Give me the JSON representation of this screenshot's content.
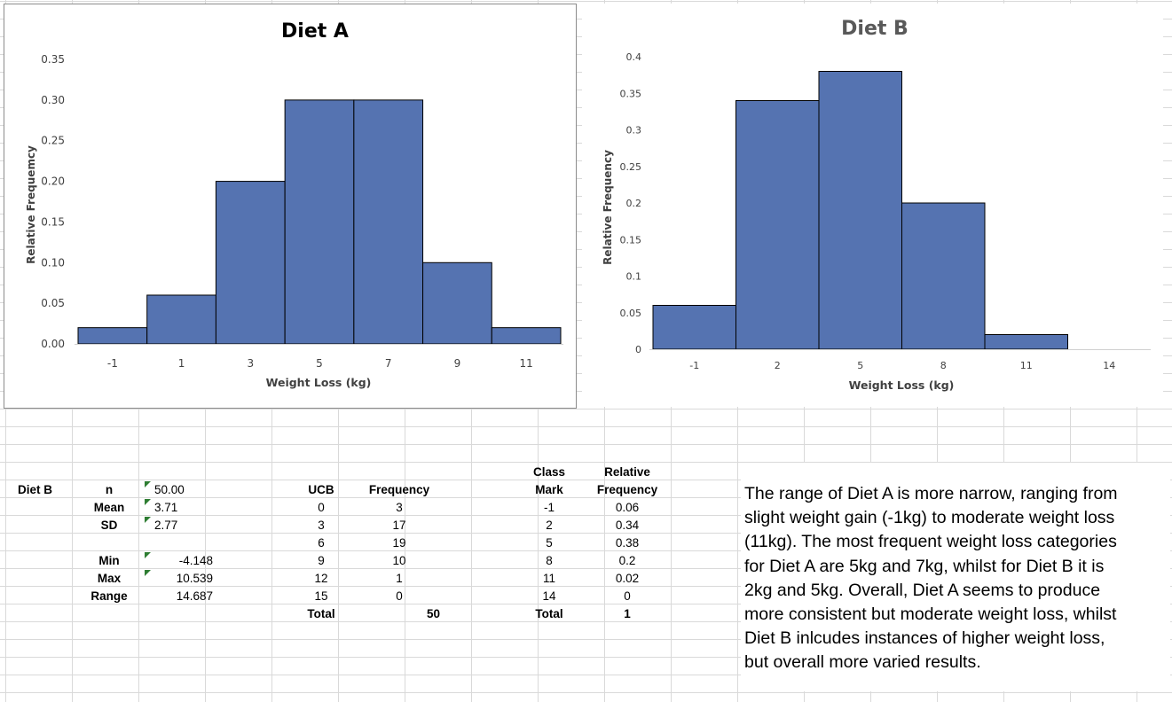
{
  "charts": [
    {
      "title": "Diet A",
      "xlabel": "Weight Loss (kg)",
      "ylabel": "Relative Frequemcy",
      "yticks": [
        "0.00",
        "0.05",
        "0.10",
        "0.15",
        "0.20",
        "0.25",
        "0.30",
        "0.35"
      ],
      "ylim": [
        0,
        0.35
      ],
      "bar_color": "#5573b1",
      "title_color": "#000000"
    },
    {
      "title": "Diet B",
      "xlabel": "Weight Loss (kg)",
      "ylabel": "Relative Frequency",
      "yticks": [
        "0",
        "0.05",
        "0.1",
        "0.15",
        "0.2",
        "0.25",
        "0.3",
        "0.35",
        "0.4"
      ],
      "ylim": [
        0,
        0.4
      ],
      "bar_color": "#5573b1",
      "title_color": "#595959"
    }
  ],
  "chart_data": [
    {
      "type": "bar",
      "title": "Diet A",
      "categories": [
        "-1",
        "1",
        "3",
        "5",
        "7",
        "9",
        "11"
      ],
      "values": [
        0.02,
        0.06,
        0.2,
        0.3,
        0.3,
        0.1,
        0.02
      ],
      "xlabel": "Weight Loss (kg)",
      "ylabel": "Relative Frequemcy",
      "ylim": [
        0,
        0.35
      ],
      "grid": false
    },
    {
      "type": "bar",
      "title": "Diet B",
      "categories": [
        "-1",
        "2",
        "5",
        "8",
        "11",
        "14"
      ],
      "values": [
        0.06,
        0.34,
        0.38,
        0.2,
        0.02,
        0
      ],
      "xlabel": "Weight Loss (kg)",
      "ylabel": "Relative Frequency",
      "ylim": [
        0,
        0.4
      ],
      "grid": false
    }
  ],
  "stats": {
    "label": "Diet B",
    "n_label": "n",
    "n": "50.00",
    "mean_label": "Mean",
    "mean": "3.71",
    "sd_label": "SD",
    "sd": "2.77",
    "min_label": "Min",
    "min": "-4.148",
    "max_label": "Max",
    "max": "10.539",
    "range_label": "Range",
    "range": "14.687"
  },
  "freq_table": {
    "ucb_header": "UCB",
    "freq_header": "Frequency",
    "rows": [
      {
        "ucb": "0",
        "freq": "3"
      },
      {
        "ucb": "3",
        "freq": "17"
      },
      {
        "ucb": "6",
        "freq": "19"
      },
      {
        "ucb": "9",
        "freq": "10"
      },
      {
        "ucb": "12",
        "freq": "1"
      },
      {
        "ucb": "15",
        "freq": "0"
      }
    ],
    "total_label": "Total",
    "total": "50"
  },
  "rel_table": {
    "mark_header_1": "Class",
    "mark_header_2": "Mark",
    "rel_header_1": "Relative",
    "rel_header_2": "Frequency",
    "rows": [
      {
        "mark": "-1",
        "rel": "0.06"
      },
      {
        "mark": "2",
        "rel": "0.34"
      },
      {
        "mark": "5",
        "rel": "0.38"
      },
      {
        "mark": "8",
        "rel": "0.2"
      },
      {
        "mark": "11",
        "rel": "0.02"
      },
      {
        "mark": "14",
        "rel": "0"
      }
    ],
    "total_label": "Total",
    "total": "1"
  },
  "summary": {
    "lines": [
      "The range of Diet A is more narrow, ranging from",
      "slight weight gain (-1kg) to moderate weight loss",
      "(11kg). The most frequent weight loss categories",
      "for Diet A are 5kg and 7kg, whilst for Diet B it is",
      "2kg and 5kg. Overall, Diet A seems to produce",
      "more consistent but moderate weight loss, whilst",
      "Diet B inlcudes instances of higher weight loss,",
      "but overall more varied results."
    ]
  }
}
